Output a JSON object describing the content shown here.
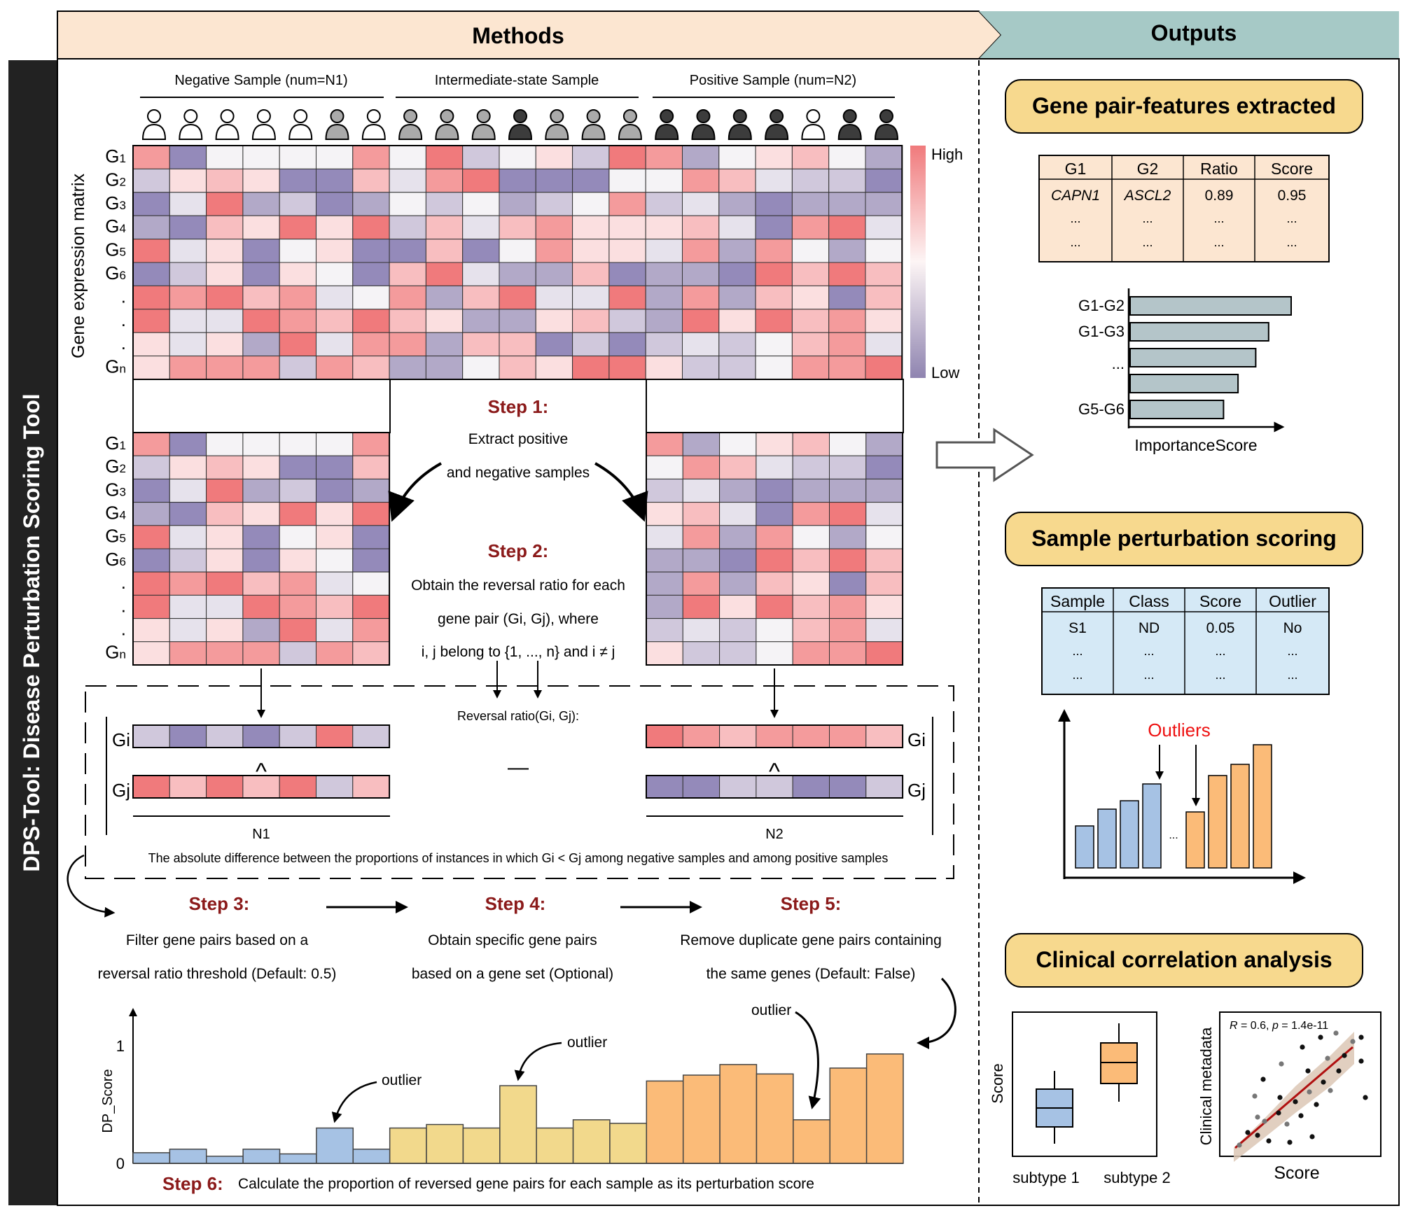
{
  "side_title": "DPS-Tool: Disease Perturbation Scoring Tool",
  "methods_label": "Methods",
  "outputs_label": "Outputs",
  "groups": {
    "negative": "Negative Sample (num=N1)",
    "intermediate": "Intermediate-state Sample",
    "positive": "Positive Sample (num=N2)"
  },
  "matrix_ylabel": "Gene expression matrix",
  "gene_labels": [
    "G1",
    "G2",
    "G3",
    "G4",
    "G5",
    "G6",
    ".",
    ".",
    ".",
    "Gn"
  ],
  "legend": {
    "high": "High",
    "low": "Low",
    "high_color": "#f07a7c",
    "low_color": "#8f84b0"
  },
  "steps": {
    "s1_title": "Step 1:",
    "s1_line1": "Extract positive",
    "s1_line2": "and negative samples",
    "s2_title": "Step 2:",
    "s2_line1": "Obtain the reversal ratio for each",
    "s2_line2": "gene pair (Gi, Gj), where",
    "s2_line3": "i, j belong to {1, ..., n} and i ≠ j",
    "s3_title": "Step 3:",
    "s3_line1": "Filter gene pairs based on a",
    "s3_line2": "reversal ratio threshold (Default: 0.5)",
    "s4_title": "Step 4:",
    "s4_line1": "Obtain specific gene pairs",
    "s4_line2": "based on a gene set (Optional)",
    "s5_title": "Step 5:",
    "s5_line1": "Remove duplicate gene pairs containing",
    "s5_line2": "the same genes (Default: False)",
    "s6_title": "Step 6:",
    "s6_text": "Calculate the proportion of reversed gene pairs for each sample as its perturbation score"
  },
  "reversal": {
    "label": "Reversal ratio(Gi, Gj):",
    "gi": "Gi",
    "gj": "Gj",
    "wedge": "^",
    "minus": "—",
    "n1": "N1",
    "n2": "N2",
    "caption": "The absolute difference between the proportions of instances in which Gi < Gj among negative samples and among positive samples"
  },
  "dp_chart": {
    "ylabel": "DP_Score",
    "y_ticks": [
      "0",
      "1"
    ],
    "annotations": [
      "outlier",
      "outlier",
      "outlier"
    ],
    "values": [
      0.09,
      0.12,
      0.06,
      0.12,
      0.08,
      0.3,
      0.12,
      0.3,
      0.33,
      0.3,
      0.66,
      0.3,
      0.37,
      0.34,
      0.7,
      0.75,
      0.84,
      0.76,
      0.37,
      0.81,
      0.93
    ],
    "colors": [
      "#a6c2e4",
      "#f2d98c",
      "#fbbb78"
    ]
  },
  "output1": {
    "title": "Gene pair-features extracted",
    "headers": [
      "G1",
      "G2",
      "Ratio",
      "Score"
    ],
    "row1": [
      "CAPN1",
      "ASCL2",
      "0.89",
      "0.95"
    ],
    "dots": "...",
    "bar_labels": [
      "G1-G2",
      "G1-G3",
      "...",
      "G5-G6"
    ],
    "bar_values": [
      1.0,
      0.86,
      0.78,
      0.67,
      0.58
    ],
    "xlabel": "ImportanceScore"
  },
  "output2": {
    "title": "Sample perturbation scoring",
    "headers": [
      "Sample",
      "Class",
      "Score",
      "Outlier"
    ],
    "row1": [
      "S1",
      "ND",
      "0.05",
      "No"
    ],
    "outliers_label": "Outliers",
    "blue_values": [
      0.3,
      0.42,
      0.48,
      0.6
    ],
    "orange_values": [
      0.4,
      0.66,
      0.74,
      0.88
    ]
  },
  "output3": {
    "title": "Clinical correlation analysis",
    "box_ylabel": "Score",
    "box_xlabels": [
      "subtype 1",
      "subtype 2"
    ],
    "scatter_ylabel": "Clinical metadata",
    "scatter_xlabel": "Score",
    "stat_R": "R",
    "stat_R_val": " = 0.6, ",
    "stat_p": "p",
    "stat_p_val": " = 1.4e-11"
  }
}
